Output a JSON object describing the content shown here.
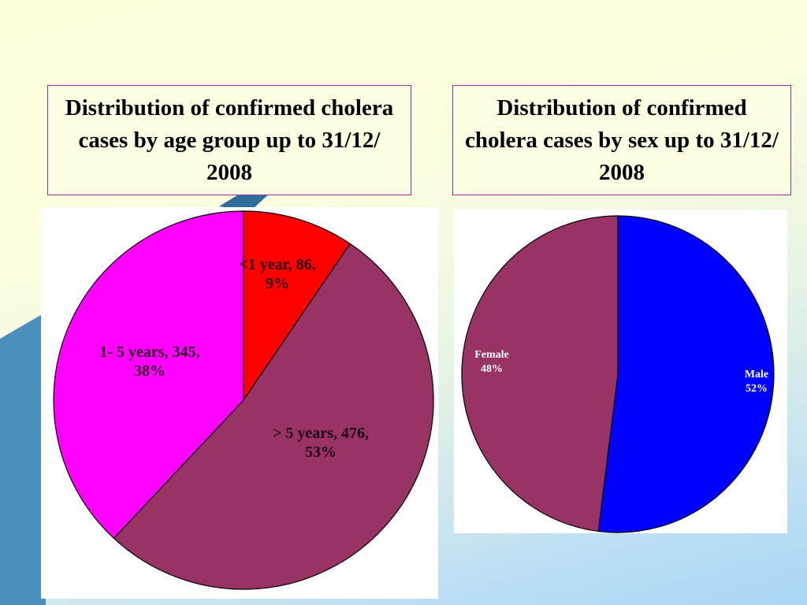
{
  "charts": {
    "age": {
      "title": "Distribution of confirmed cholera cases by age group up to 31/12/ 2008",
      "slices": [
        {
          "label_line1": "<1 year, 86,",
          "label_line2": "9%"
        },
        {
          "label_line1": "> 5 years, 476,",
          "label_line2": "53%"
        },
        {
          "label_line1": "1- 5 years, 345,",
          "label_line2": "38%"
        }
      ]
    },
    "sex": {
      "title": "Distribution of confirmed cholera cases by sex up to 31/12/ 2008",
      "slices": [
        {
          "label_line1": "Male",
          "label_line2": "52%"
        },
        {
          "label_line1": "Female",
          "label_line2": "48%"
        }
      ]
    }
  },
  "chart_data": [
    {
      "type": "pie",
      "title": "Distribution of confirmed cholera cases by age group up to 31/12/ 2008",
      "categories": [
        "<1 year",
        "> 5 years",
        "1- 5 years"
      ],
      "values": [
        86,
        476,
        345
      ],
      "percents": [
        9,
        53,
        38
      ],
      "colors": [
        "#ff0000",
        "#993366",
        "#ff00ff"
      ],
      "start": "12 o'clock",
      "direction": "clockwise"
    },
    {
      "type": "pie",
      "title": "Distribution of confirmed cholera cases by sex up to 31/12/ 2008",
      "categories": [
        "Male",
        "Female"
      ],
      "values": [
        52,
        48
      ],
      "percents": [
        52,
        48
      ],
      "colors": [
        "#0000ff",
        "#993366"
      ],
      "start": "12 o'clock",
      "direction": "clockwise"
    }
  ]
}
